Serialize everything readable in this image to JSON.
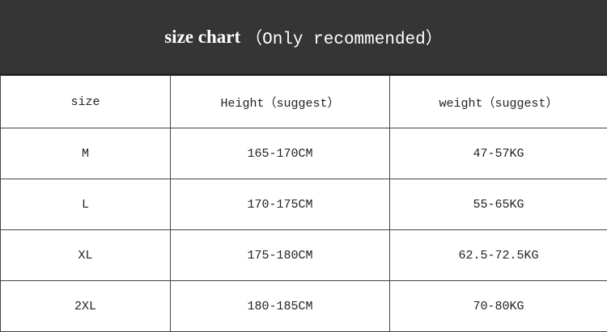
{
  "title": {
    "bold": "size chart",
    "rest": "（Only recommended）"
  },
  "columns": [
    "size",
    "Height（suggest）",
    "weight（suggest）"
  ],
  "rows": [
    [
      "M",
      "165-170CM",
      "47-57KG"
    ],
    [
      "L",
      "170-175CM",
      "55-65KG"
    ],
    [
      "XL",
      "175-180CM",
      "62.5-72.5KG"
    ],
    [
      "2XL",
      "180-185CM",
      "70-80KG"
    ]
  ],
  "colors": {
    "header_bg": "#353535",
    "header_text": "#ffffff",
    "border": "#444444"
  }
}
